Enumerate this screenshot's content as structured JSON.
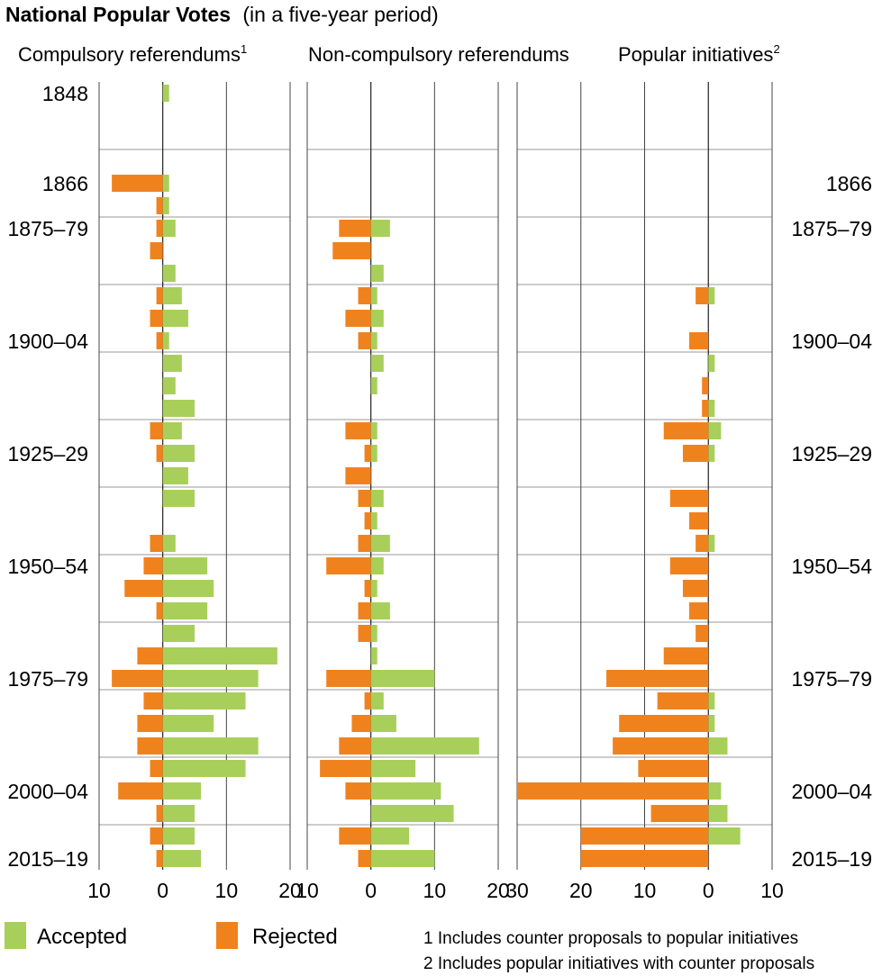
{
  "title": "National Popular Votes",
  "subtitle": "(in a five-year period)",
  "colors": {
    "accepted": "#a8cf5a",
    "rejected": "#f0821e",
    "grid": "#9a9a9a",
    "axis": "#231f20"
  },
  "legend": {
    "accepted": "Accepted",
    "rejected": "Rejected",
    "placement": "bottom-left"
  },
  "footnotes": [
    "1 Includes counter proposals to popular initiatives",
    "2 Includes popular initiatives with counter proposals"
  ],
  "row_labels_left": [
    "1848",
    "",
    "",
    "",
    "1866",
    "",
    "1875–79",
    "",
    "",
    "",
    "",
    "1900–04",
    "",
    "",
    "",
    "",
    "1925–29",
    "",
    "",
    "",
    "",
    "1950–54",
    "",
    "",
    "",
    "",
    "1975–79",
    "",
    "",
    "",
    "",
    "2000–04",
    "",
    "",
    "2015–19"
  ],
  "row_labels_right": [
    "",
    "",
    "",
    "",
    "1866",
    "",
    "1875–79",
    "",
    "",
    "",
    "",
    "1900–04",
    "",
    "",
    "",
    "",
    "1925–29",
    "",
    "",
    "",
    "",
    "1950–54",
    "",
    "",
    "",
    "",
    "1975–79",
    "",
    "",
    "",
    "",
    "2000–04",
    "",
    "",
    "2015–19"
  ],
  "chart_data": [
    {
      "type": "bar",
      "title": "Compulsory referendums",
      "title_superscript": "1",
      "xlim": [
        -10,
        20
      ],
      "xticks": [
        "10",
        "0",
        "10",
        "20"
      ],
      "series": [
        {
          "name": "Accepted",
          "values": [
            1,
            0,
            0,
            0,
            1,
            1,
            2,
            0,
            2,
            3,
            4,
            1,
            3,
            2,
            5,
            3,
            5,
            4,
            5,
            0,
            2,
            7,
            8,
            7,
            5,
            18,
            15,
            13,
            8,
            15,
            13,
            6,
            5,
            5,
            6
          ]
        },
        {
          "name": "Rejected",
          "values": [
            0,
            0,
            0,
            0,
            8,
            1,
            1,
            2,
            0,
            1,
            2,
            1,
            0,
            0,
            0,
            2,
            1,
            0,
            0,
            0,
            2,
            3,
            6,
            1,
            0,
            4,
            8,
            3,
            4,
            4,
            2,
            7,
            1,
            2,
            1
          ]
        }
      ]
    },
    {
      "type": "bar",
      "title": "Non-compulsory referendums",
      "xlim": [
        -10,
        20
      ],
      "xticks": [
        "10",
        "0",
        "10",
        "20"
      ],
      "series": [
        {
          "name": "Accepted",
          "values": [
            0,
            0,
            0,
            0,
            0,
            0,
            3,
            0,
            2,
            1,
            2,
            1,
            2,
            1,
            0,
            1,
            1,
            0,
            2,
            1,
            3,
            2,
            1,
            3,
            1,
            1,
            10,
            2,
            4,
            17,
            7,
            11,
            13,
            6,
            10
          ]
        },
        {
          "name": "Rejected",
          "values": [
            0,
            0,
            0,
            0,
            0,
            0,
            5,
            6,
            0,
            2,
            4,
            2,
            0,
            0,
            0,
            4,
            1,
            4,
            2,
            1,
            2,
            7,
            1,
            2,
            2,
            0,
            7,
            1,
            3,
            5,
            8,
            4,
            0,
            5,
            2
          ]
        }
      ]
    },
    {
      "type": "bar",
      "title": "Popular initiatives",
      "title_superscript": "2",
      "xlim": [
        -30,
        10
      ],
      "xticks": [
        "30",
        "20",
        "10",
        "0",
        "10"
      ],
      "series": [
        {
          "name": "Accepted",
          "values": [
            0,
            0,
            0,
            0,
            0,
            0,
            0,
            0,
            0,
            1,
            0,
            0,
            1,
            0,
            1,
            2,
            1,
            0,
            0,
            0,
            1,
            0,
            0,
            0,
            0,
            0,
            0,
            1,
            1,
            3,
            0,
            2,
            3,
            5,
            0
          ]
        },
        {
          "name": "Rejected",
          "values": [
            0,
            0,
            0,
            0,
            0,
            0,
            0,
            0,
            0,
            2,
            0,
            3,
            0,
            1,
            1,
            7,
            4,
            0,
            6,
            3,
            2,
            6,
            4,
            3,
            2,
            7,
            16,
            8,
            14,
            15,
            11,
            30,
            9,
            20,
            20
          ]
        }
      ]
    }
  ]
}
